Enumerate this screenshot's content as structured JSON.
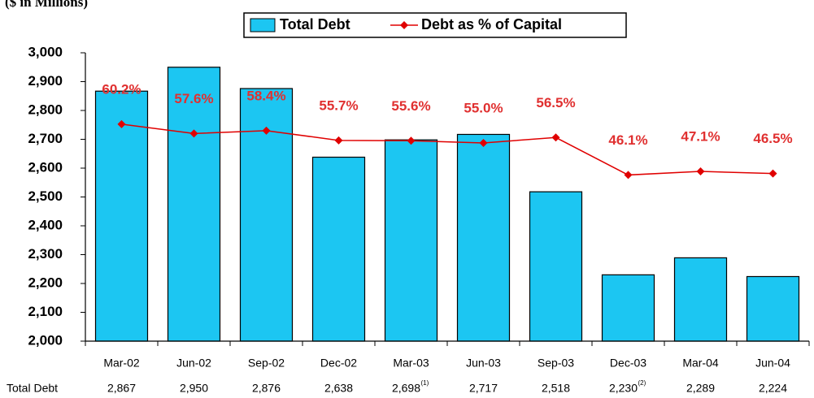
{
  "chart_data": {
    "type": "bar-line",
    "title": "($ in Millions)",
    "categories": [
      "Mar-02",
      "Jun-02",
      "Sep-02",
      "Dec-02",
      "Mar-03",
      "Jun-03",
      "Sep-03",
      "Dec-03",
      "Mar-04",
      "Jun-04"
    ],
    "series": [
      {
        "name": "Total Debt",
        "type": "bar",
        "color": "#1cc6f2",
        "values": [
          2867,
          2950,
          2876,
          2638,
          2698,
          2717,
          2518,
          2230,
          2289,
          2224
        ],
        "value_labels": [
          "2,867",
          "2,950",
          "2,876",
          "2,638",
          "2,698",
          "2,717",
          "2,518",
          "2,230",
          "2,289",
          "2,224"
        ]
      },
      {
        "name": "Debt as % of Capital",
        "type": "line",
        "axis": "y2",
        "color": "#e00000",
        "values": [
          60.2,
          57.6,
          58.4,
          55.7,
          55.6,
          55.0,
          56.5,
          46.1,
          47.1,
          46.5
        ],
        "value_labels": [
          "60.2%",
          "57.6%",
          "58.4%",
          "55.7%",
          "55.6%",
          "55.0%",
          "56.5%",
          "46.1%",
          "47.1%",
          "46.5%"
        ]
      }
    ],
    "table_label": "Total Debt",
    "footnotes": [
      {
        "index": 4,
        "label": "(1)"
      },
      {
        "index": 7,
        "label": "(2)"
      }
    ],
    "ylim": [
      2000,
      3000
    ],
    "yticks": [
      {
        "value": 2000,
        "label": "2,000"
      },
      {
        "value": 2100,
        "label": "2,100"
      },
      {
        "value": 2200,
        "label": "2,200"
      },
      {
        "value": 2300,
        "label": "2,300"
      },
      {
        "value": 2400,
        "label": "2,400"
      },
      {
        "value": 2500,
        "label": "2,500"
      },
      {
        "value": 2600,
        "label": "2,600"
      },
      {
        "value": 2700,
        "label": "2,700"
      },
      {
        "value": 2800,
        "label": "2,800"
      },
      {
        "value": 2900,
        "label": "2,900"
      },
      {
        "value": 3000,
        "label": "3,000"
      }
    ],
    "y2lim": [
      0,
      80
    ],
    "grid": false
  }
}
